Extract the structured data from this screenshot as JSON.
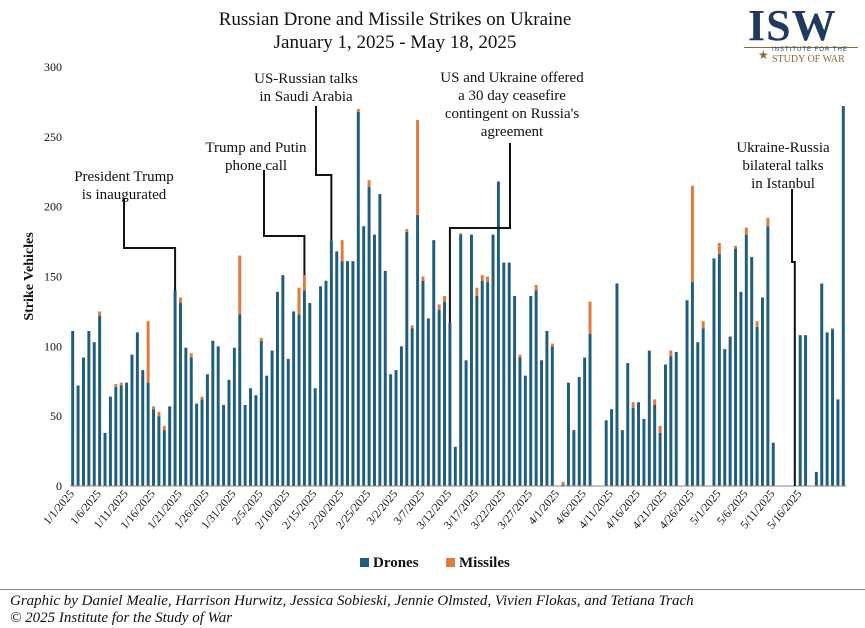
{
  "chart_data": {
    "type": "bar",
    "stacked": true,
    "title": "Russian Drone and Missile Strikes on Ukraine",
    "subtitle": "January 1, 2025 - May 18, 2025",
    "ylabel": "Strike Vehicles",
    "xlabel": "",
    "ylim": [
      0,
      300
    ],
    "yticks": [
      0,
      50,
      100,
      150,
      200,
      250,
      300
    ],
    "grid": false,
    "legend_position": "bottom",
    "start_date": "2025-01-01",
    "x_tick_labels": [
      "1/1/2025",
      "1/6/2025",
      "1/11/2025",
      "1/16/2025",
      "1/21/2025",
      "1/26/2025",
      "1/31/2025",
      "2/5/2025",
      "2/10/2025",
      "2/15/2025",
      "2/20/2025",
      "2/25/2025",
      "3/2/2025",
      "3/7/2025",
      "3/12/2025",
      "3/17/2025",
      "3/22/2025",
      "3/27/2025",
      "4/1/2025",
      "4/6/2025",
      "4/11/2025",
      "4/16/2025",
      "4/21/2025",
      "4/26/2025",
      "5/1/2025",
      "5/6/2025",
      "5/11/2025",
      "5/16/2025"
    ],
    "series": [
      {
        "name": "Drones",
        "color": "#1f5d7e",
        "values": [
          111,
          72,
          92,
          111,
          103,
          122,
          38,
          64,
          71,
          72,
          74,
          94,
          110,
          83,
          74,
          55,
          50,
          40,
          57,
          140,
          131,
          99,
          92,
          59,
          62,
          80,
          104,
          100,
          58,
          76,
          99,
          123,
          58,
          70,
          65,
          104,
          79,
          97,
          139,
          151,
          91,
          125,
          123,
          140,
          131,
          70,
          143,
          147,
          176,
          168,
          161,
          161,
          161,
          268,
          186,
          214,
          180,
          209,
          154,
          80,
          83,
          100,
          182,
          113,
          194,
          147,
          120,
          176,
          126,
          132,
          117,
          28,
          180,
          90,
          180,
          136,
          147,
          146,
          180,
          218,
          160,
          160,
          136,
          92,
          79,
          136,
          140,
          90,
          111,
          100,
          0,
          1,
          74,
          40,
          78,
          92,
          109,
          0,
          0,
          47,
          55,
          145,
          40,
          88,
          56,
          60,
          48,
          97,
          58,
          38,
          87,
          93,
          96,
          0,
          133,
          146,
          103,
          113,
          0,
          163,
          166,
          98,
          107,
          170,
          139,
          180,
          164,
          114,
          135,
          186,
          31,
          0,
          0,
          0,
          0,
          108,
          108,
          0,
          10,
          145,
          110,
          112,
          62,
          272
        ]
      },
      {
        "name": "Missiles",
        "color": "#e07b39",
        "values": [
          0,
          0,
          0,
          0,
          0,
          3,
          0,
          0,
          2,
          2,
          0,
          0,
          0,
          0,
          44,
          2,
          3,
          3,
          0,
          0,
          4,
          0,
          3,
          0,
          2,
          0,
          0,
          0,
          0,
          0,
          0,
          42,
          0,
          0,
          0,
          2,
          0,
          0,
          0,
          0,
          0,
          0,
          19,
          11,
          0,
          0,
          0,
          0,
          0,
          0,
          15,
          0,
          0,
          2,
          0,
          5,
          0,
          0,
          0,
          0,
          0,
          0,
          2,
          2,
          68,
          3,
          0,
          0,
          4,
          4,
          0,
          0,
          1,
          0,
          0,
          6,
          4,
          4,
          0,
          0,
          0,
          0,
          0,
          2,
          0,
          0,
          4,
          0,
          0,
          2,
          0,
          2,
          0,
          0,
          0,
          0,
          23,
          0,
          0,
          0,
          0,
          0,
          0,
          0,
          4,
          0,
          0,
          0,
          4,
          5,
          0,
          4,
          0,
          0,
          0,
          69,
          0,
          5,
          0,
          0,
          8,
          0,
          0,
          2,
          0,
          5,
          0,
          4,
          0,
          6,
          0,
          0,
          0,
          0,
          0,
          0,
          0,
          0,
          0,
          0,
          0,
          1,
          0,
          0
        ]
      }
    ],
    "annotations": [
      {
        "text": [
          "President Trump",
          "is inaugurated"
        ],
        "date_index": 19
      },
      {
        "text": [
          "Trump and Putin",
          "phone call"
        ],
        "date_index": 43
      },
      {
        "text": [
          "US-Russian talks",
          "in Saudi Arabia"
        ],
        "date_index": 48
      },
      {
        "text": [
          "US and Ukraine offered",
          "a 30 day ceasefire",
          "contingent on Russia's",
          "agreement"
        ],
        "date_index": 70
      },
      {
        "text": [
          "Ukraine-Russia",
          "bilateral talks",
          "in Istanbul"
        ],
        "date_index": 134
      }
    ]
  },
  "header": {
    "title": "Russian Drone and Missile Strikes on Ukraine",
    "subtitle": "January 1, 2025 - May 18, 2025"
  },
  "logo": {
    "mark": "ISW",
    "line1": "INSTITUTE FOR THE",
    "line2": "STUDY OF WAR",
    "icon": "star-icon"
  },
  "credits": {
    "line1": "Graphic by Daniel Mealie, Harrison Hurwitz, Jessica Sobieski, Jennie Olmsted, Vivien Flokas, and Tetiana Trach",
    "line2": "© 2025 Institute for the Study of War"
  }
}
